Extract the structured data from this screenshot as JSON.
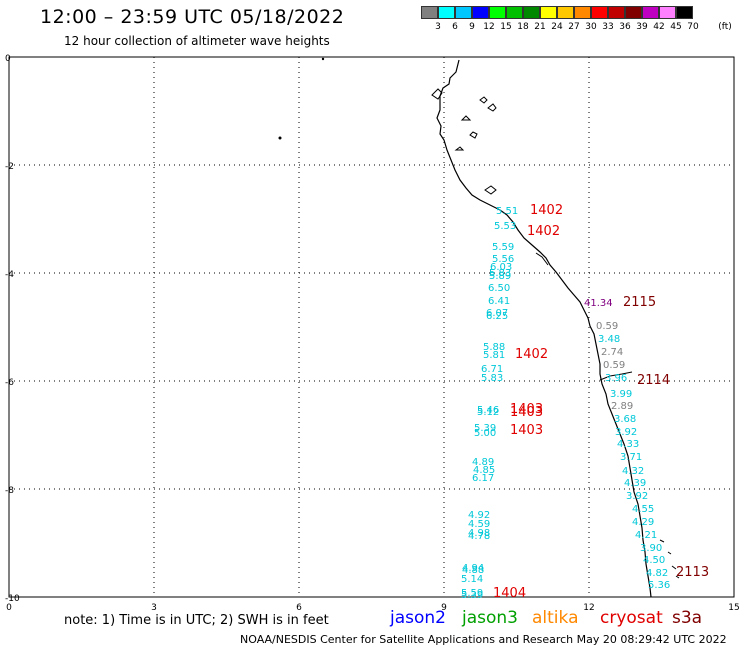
{
  "header": {
    "title": "12:00 – 23:59 UTC 05/18/2022",
    "subtitle": "12 hour collection of altimeter wave heights"
  },
  "legend": {
    "unit": "(ft)",
    "bins": [
      {
        "label": "3",
        "color": "#808080"
      },
      {
        "label": "6",
        "color": "#00ffff"
      },
      {
        "label": "9",
        "color": "#00c8ff"
      },
      {
        "label": "12",
        "color": "#0000ff"
      },
      {
        "label": "15",
        "color": "#00ff00"
      },
      {
        "label": "18",
        "color": "#00c000"
      },
      {
        "label": "21",
        "color": "#008800"
      },
      {
        "label": "24",
        "color": "#ffff00"
      },
      {
        "label": "27",
        "color": "#ffc800"
      },
      {
        "label": "30",
        "color": "#ff8800"
      },
      {
        "label": "33",
        "color": "#ff0000"
      },
      {
        "label": "36",
        "color": "#c00000"
      },
      {
        "label": "39",
        "color": "#800000"
      },
      {
        "label": "42",
        "color": "#c000c0"
      },
      {
        "label": "45",
        "color": "#ff80ff"
      },
      {
        "label": "70",
        "color": "#000000"
      }
    ]
  },
  "axes": {
    "y_ticks": [
      "0",
      "-2",
      "-4",
      "-6",
      "-8",
      "-10"
    ],
    "x_ticks": [
      "0",
      "3",
      "6",
      "9",
      "12",
      "15"
    ]
  },
  "observations": [
    {
      "t": "5.51",
      "c": "#00c8d8"
    },
    {
      "t": "5.53",
      "c": "#00c8d8"
    },
    {
      "t": "5.59",
      "c": "#00c8d8"
    },
    {
      "t": "5.56",
      "c": "#00c8d8"
    },
    {
      "t": "6.03",
      "c": "#00c8d8"
    },
    {
      "t": "5.83",
      "c": "#00c8d8"
    },
    {
      "t": "5.89",
      "c": "#00c8d8"
    },
    {
      "t": "6.50",
      "c": "#00c8d8"
    },
    {
      "t": "6.41",
      "c": "#00c8d8"
    },
    {
      "t": "6.07",
      "c": "#00c8d8"
    },
    {
      "t": "6.25",
      "c": "#00c8d8"
    },
    {
      "t": "5.88",
      "c": "#00c8d8"
    },
    {
      "t": "5.81",
      "c": "#00c8d8"
    },
    {
      "t": "6.71",
      "c": "#00c8d8"
    },
    {
      "t": "5.83",
      "c": "#00c8d8"
    },
    {
      "t": "5.46",
      "c": "#00c8d8"
    },
    {
      "t": "5.12",
      "c": "#00c8d8"
    },
    {
      "t": "5.39",
      "c": "#00c8d8"
    },
    {
      "t": "5.00",
      "c": "#00c8d8"
    },
    {
      "t": "4.89",
      "c": "#00c8d8"
    },
    {
      "t": "4.85",
      "c": "#00c8d8"
    },
    {
      "t": "6.17",
      "c": "#00c8d8"
    },
    {
      "t": "4.92",
      "c": "#00c8d8"
    },
    {
      "t": "4.59",
      "c": "#00c8d8"
    },
    {
      "t": "4.98",
      "c": "#00c8d8"
    },
    {
      "t": "4.78",
      "c": "#00c8d8"
    },
    {
      "t": "4.94",
      "c": "#00c8d8"
    },
    {
      "t": "4.88",
      "c": "#00c8d8"
    },
    {
      "t": "5.14",
      "c": "#00c8d8"
    },
    {
      "t": "5.59",
      "c": "#00c8d8"
    },
    {
      "t": "5.39",
      "c": "#00c8d8"
    },
    {
      "t": "41.34",
      "c": "#800080"
    },
    {
      "t": "0.59",
      "c": "#808080"
    },
    {
      "t": "3.48",
      "c": "#00c8d8"
    },
    {
      "t": "2.74",
      "c": "#808080"
    },
    {
      "t": "0.59",
      "c": "#808080"
    },
    {
      "t": "3.96",
      "c": "#00c8d8"
    },
    {
      "t": "3.99",
      "c": "#00c8d8"
    },
    {
      "t": "2.89",
      "c": "#808080"
    },
    {
      "t": "3.68",
      "c": "#00c8d8"
    },
    {
      "t": "3.92",
      "c": "#00c8d8"
    },
    {
      "t": "4.33",
      "c": "#00c8d8"
    },
    {
      "t": "3.71",
      "c": "#00c8d8"
    },
    {
      "t": "4.32",
      "c": "#00c8d8"
    },
    {
      "t": "4.39",
      "c": "#00c8d8"
    },
    {
      "t": "3.92",
      "c": "#00c8d8"
    },
    {
      "t": "4.55",
      "c": "#00c8d8"
    },
    {
      "t": "4.29",
      "c": "#00c8d8"
    },
    {
      "t": "4.21",
      "c": "#00c8d8"
    },
    {
      "t": "3.90",
      "c": "#00c8d8"
    },
    {
      "t": "4.50",
      "c": "#00c8d8"
    },
    {
      "t": "4.82",
      "c": "#00c8d8"
    },
    {
      "t": "5.36",
      "c": "#00c8d8"
    }
  ],
  "pass_times": [
    {
      "t": "1402",
      "c": "#e00000"
    },
    {
      "t": "1402",
      "c": "#e00000"
    },
    {
      "t": "2115",
      "c": "#800000"
    },
    {
      "t": "1402",
      "c": "#e00000"
    },
    {
      "t": "2114",
      "c": "#800000"
    },
    {
      "t": "1403",
      "c": "#e00000"
    },
    {
      "t": "1403",
      "c": "#e00000"
    },
    {
      "t": "1403",
      "c": "#e00000"
    },
    {
      "t": "2113",
      "c": "#800000"
    },
    {
      "t": "1404",
      "c": "#e00000"
    }
  ],
  "footer": {
    "note": "note:  1) Time is in UTC;  2) SWH is in feet",
    "satellites": [
      {
        "name": "jason2",
        "color": "#0000ff"
      },
      {
        "name": "jason3",
        "color": "#00a000"
      },
      {
        "name": "altika",
        "color": "#ff8800"
      },
      {
        "name": "cryosat",
        "color": "#e00000"
      },
      {
        "name": "s3a",
        "color": "#800000"
      }
    ],
    "credit": "NOAA/NESDIS Center for Satellite Applications and Research    May 20 08:29:42 UTC 2022"
  }
}
